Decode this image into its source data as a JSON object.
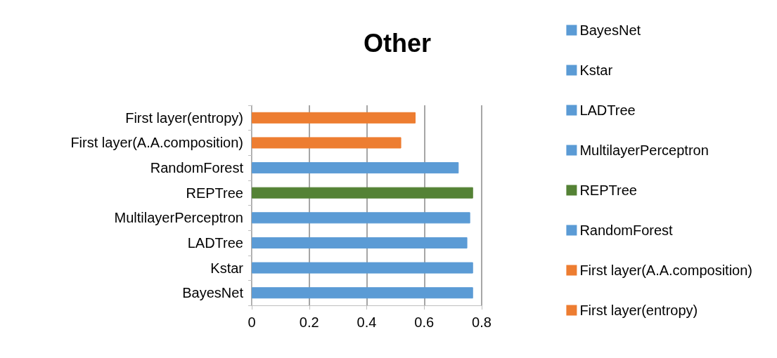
{
  "chart_data": {
    "type": "bar",
    "title": "Other",
    "orientation": "horizontal",
    "categories": [
      "First layer(entropy)",
      "First layer(A.A.composition)",
      "RandomForest",
      "REPTree",
      "MultilayerPerceptron",
      "LADTree",
      "Kstar",
      "BayesNet"
    ],
    "series": [
      {
        "name": "BayesNet",
        "color": "#5b9bd5",
        "values": [
          null,
          null,
          null,
          null,
          null,
          null,
          null,
          0.77
        ]
      },
      {
        "name": "Kstar",
        "color": "#5b9bd5",
        "values": [
          null,
          null,
          null,
          null,
          null,
          null,
          0.77,
          null
        ]
      },
      {
        "name": "LADTree",
        "color": "#5b9bd5",
        "values": [
          null,
          null,
          null,
          null,
          null,
          0.75,
          null,
          null
        ]
      },
      {
        "name": "MultilayerPerceptron",
        "color": "#5b9bd5",
        "values": [
          null,
          null,
          null,
          null,
          0.76,
          null,
          null,
          null
        ]
      },
      {
        "name": "REPTree",
        "color": "#548235",
        "values": [
          null,
          null,
          null,
          0.77,
          null,
          null,
          null,
          null
        ]
      },
      {
        "name": "RandomForest",
        "color": "#5b9bd5",
        "values": [
          null,
          null,
          0.72,
          null,
          null,
          null,
          null,
          null
        ]
      },
      {
        "name": "First layer(A.A.composition)",
        "color": "#ed7d31",
        "values": [
          null,
          0.52,
          null,
          null,
          null,
          null,
          null,
          null
        ]
      },
      {
        "name": "First layer(entropy)",
        "color": "#ed7d31",
        "values": [
          0.57,
          null,
          null,
          null,
          null,
          null,
          null,
          null
        ]
      }
    ],
    "xlim": [
      0,
      0.8
    ],
    "xticks": [
      0,
      0.2,
      0.4,
      0.6,
      0.8
    ],
    "grid": "x",
    "legend": "right"
  }
}
